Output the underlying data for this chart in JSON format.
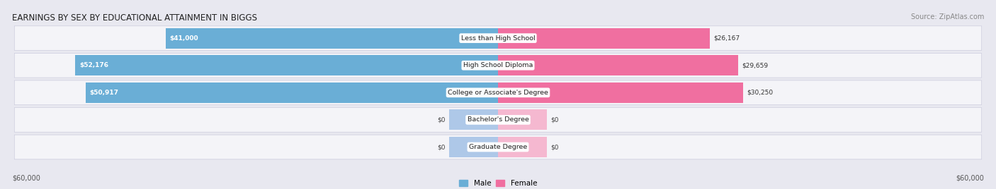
{
  "title": "EARNINGS BY SEX BY EDUCATIONAL ATTAINMENT IN BIGGS",
  "source": "Source: ZipAtlas.com",
  "categories": [
    "Less than High School",
    "High School Diploma",
    "College or Associate's Degree",
    "Bachelor's Degree",
    "Graduate Degree"
  ],
  "male_values": [
    41000,
    52176,
    50917,
    0,
    0
  ],
  "female_values": [
    26167,
    29659,
    30250,
    0,
    0
  ],
  "male_labels": [
    "$41,000",
    "$52,176",
    "$50,917",
    "$0",
    "$0"
  ],
  "female_labels": [
    "$26,167",
    "$29,659",
    "$30,250",
    "$0",
    "$0"
  ],
  "male_color": "#6aaed6",
  "female_color": "#f06fa0",
  "male_color_zero": "#aec8e8",
  "female_color_zero": "#f5b8d0",
  "max_value": 60000,
  "zero_bar_size": 6000,
  "x_label_left": "$60,000",
  "x_label_right": "$60,000",
  "background_color": "#e8e8f0",
  "row_bg_color": "#f4f4f8",
  "title_fontsize": 8.5,
  "source_fontsize": 7,
  "bar_height": 0.75,
  "legend_male": "Male",
  "legend_female": "Female"
}
